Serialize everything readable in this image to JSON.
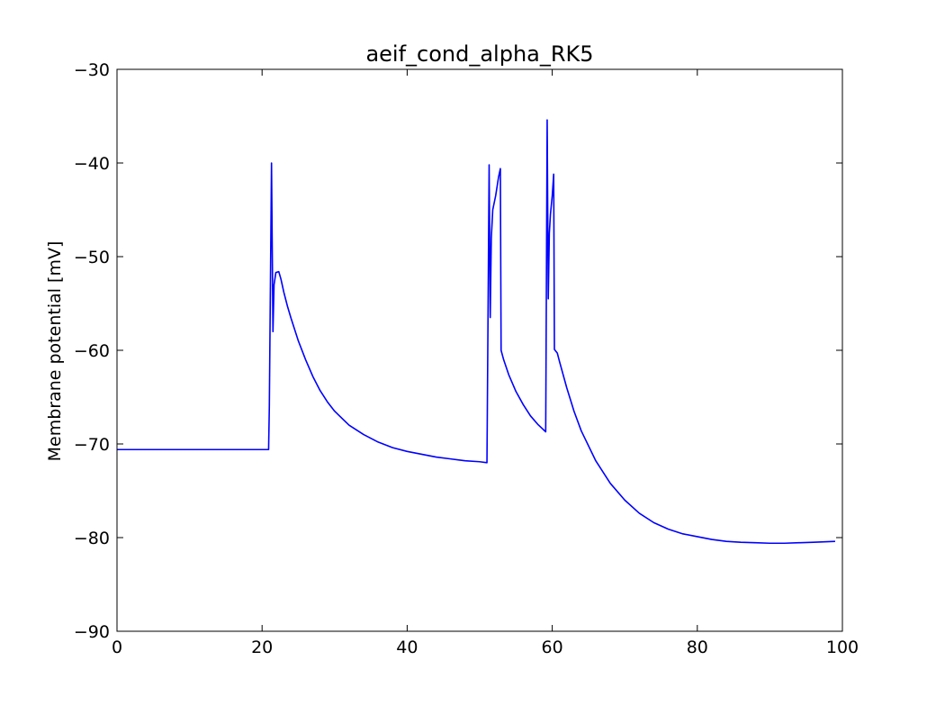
{
  "chart_data": {
    "type": "line",
    "title": "aeif_cond_alpha_RK5",
    "xlabel": "",
    "ylabel": "Membrane potential [mV]",
    "xlim": [
      0,
      100
    ],
    "ylim": [
      -90,
      -30
    ],
    "xticks": [
      0,
      20,
      40,
      60,
      80,
      100
    ],
    "yticks": [
      -90,
      -80,
      -70,
      -60,
      -50,
      -40,
      -30
    ],
    "xtick_labels": [
      "0",
      "20",
      "40",
      "60",
      "80",
      "100"
    ],
    "ytick_labels": [
      "−90",
      "−80",
      "−70",
      "−60",
      "−50",
      "−40",
      "−30"
    ],
    "grid": false,
    "line_color": "#0000ff",
    "series": [
      {
        "x": [
          0,
          20.9,
          21.0,
          21.3,
          21.5,
          21.65,
          21.9,
          22.3,
          22.6,
          23.0,
          23.5,
          24.0,
          25.0,
          26.0,
          27.0,
          28.0,
          29.0,
          30.0,
          32.0,
          34.0,
          36.0,
          38.0,
          40.0,
          42.0,
          44.0,
          46.0,
          48.0,
          50.0,
          51.0,
          51.3,
          51.45,
          51.6,
          51.8,
          52.2,
          52.6,
          52.85,
          52.95,
          53.3,
          54.0,
          55.0,
          56.0,
          57.0,
          58.0,
          59.1,
          59.3,
          59.45,
          59.6,
          59.75,
          60.0,
          60.2,
          60.3,
          60.7,
          61.0,
          62.0,
          63.0,
          64.0,
          66.0,
          68.0,
          70.0,
          72.0,
          74.0,
          76.0,
          78.0,
          80.0,
          82.0,
          84.0,
          86.0,
          88.0,
          90.0,
          92.0,
          94.0,
          96.0,
          99.0
        ],
        "y": [
          -70.6,
          -70.6,
          -66.0,
          -40.0,
          -58.0,
          -53.0,
          -51.7,
          -51.6,
          -52.4,
          -53.8,
          -55.3,
          -56.6,
          -59.0,
          -61.0,
          -62.8,
          -64.3,
          -65.5,
          -66.5,
          -68.0,
          -69.0,
          -69.8,
          -70.4,
          -70.8,
          -71.1,
          -71.4,
          -71.6,
          -71.8,
          -71.9,
          -72.0,
          -40.2,
          -56.5,
          -48.0,
          -45.0,
          -43.5,
          -41.5,
          -40.6,
          -60.0,
          -61.0,
          -62.6,
          -64.4,
          -65.8,
          -67.0,
          -67.9,
          -68.7,
          -35.4,
          -54.5,
          -47.5,
          -45.5,
          -43.5,
          -41.2,
          -59.9,
          -60.3,
          -61.2,
          -64.0,
          -66.5,
          -68.6,
          -71.8,
          -74.2,
          -76.0,
          -77.4,
          -78.4,
          -79.1,
          -79.6,
          -79.9,
          -80.2,
          -80.4,
          -80.5,
          -80.55,
          -80.6,
          -80.6,
          -80.55,
          -80.5,
          -80.4
        ]
      }
    ]
  }
}
